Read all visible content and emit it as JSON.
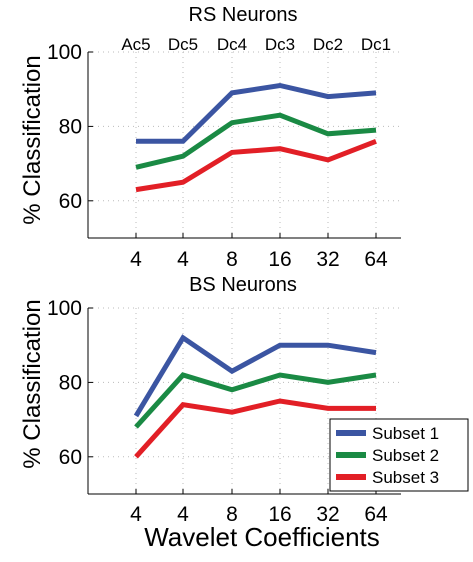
{
  "chart_data": [
    {
      "type": "line",
      "title": "RS Neurons",
      "ylabel": "% Classification",
      "xlabel": "",
      "categories": [
        "4",
        "4",
        "8",
        "16",
        "32",
        "64"
      ],
      "top_categories": [
        "Ac5",
        "Dc5",
        "Dc4",
        "Dc3",
        "Dc2",
        "Dc1"
      ],
      "ylim": [
        50,
        100
      ],
      "yticks": [
        60,
        80,
        100
      ],
      "grid": true,
      "series": [
        {
          "name": "Subset 1",
          "color": "#3b55a2",
          "values": [
            76,
            76,
            89,
            91,
            88,
            89
          ]
        },
        {
          "name": "Subset 2",
          "color": "#1a8a44",
          "values": [
            69,
            72,
            81,
            83,
            78,
            79
          ]
        },
        {
          "name": "Subset 3",
          "color": "#e21f26",
          "values": [
            63,
            65,
            73,
            74,
            71,
            76
          ]
        }
      ]
    },
    {
      "type": "line",
      "title": "BS Neurons",
      "ylabel": "% Classification",
      "xlabel": "Wavelet Coefficients",
      "categories": [
        "4",
        "4",
        "8",
        "16",
        "32",
        "64"
      ],
      "ylim": [
        50,
        100
      ],
      "yticks": [
        60,
        80,
        100
      ],
      "grid": true,
      "legend_position": "bottom-right",
      "series": [
        {
          "name": "Subset 1",
          "color": "#3b55a2",
          "values": [
            71,
            92,
            83,
            90,
            90,
            88
          ]
        },
        {
          "name": "Subset 2",
          "color": "#1a8a44",
          "values": [
            68,
            82,
            78,
            82,
            80,
            82
          ]
        },
        {
          "name": "Subset 3",
          "color": "#e21f26",
          "values": [
            60,
            74,
            72,
            75,
            73,
            73
          ]
        }
      ]
    }
  ]
}
